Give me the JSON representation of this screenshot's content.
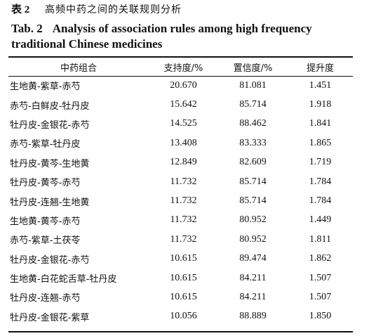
{
  "caption": {
    "number_cn": "表 2",
    "title_cn": "高频中药之间的关联规则分析",
    "number_en": "Tab. 2",
    "title_en": "Analysis of association rules among high frequency traditional Chinese medicines"
  },
  "table": {
    "headers": [
      "中药组合",
      "支持度/%",
      "置信度/%",
      "提升度"
    ],
    "rows": [
      [
        "生地黄-紫草-赤芍",
        "20.670",
        "81.081",
        "1.451"
      ],
      [
        "赤芍-白鲜皮-牡丹皮",
        "15.642",
        "85.714",
        "1.918"
      ],
      [
        "牡丹皮-金银花-赤芍",
        "14.525",
        "88.462",
        "1.841"
      ],
      [
        "赤芍-紫草-牡丹皮",
        "13.408",
        "83.333",
        "1.865"
      ],
      [
        "牡丹皮-黄芩-生地黄",
        "12.849",
        "82.609",
        "1.719"
      ],
      [
        "牡丹皮-黄芩-赤芍",
        "11.732",
        "85.714",
        "1.784"
      ],
      [
        "牡丹皮-连翘-生地黄",
        "11.732",
        "85.714",
        "1.784"
      ],
      [
        "生地黄-黄芩-赤芍",
        "11.732",
        "80.952",
        "1.449"
      ],
      [
        "赤芍-紫草-土茯苓",
        "11.732",
        "80.952",
        "1.811"
      ],
      [
        "牡丹皮-金银花-赤芍",
        "10.615",
        "89.474",
        "1.862"
      ],
      [
        "生地黄-白花蛇舌草-牡丹皮",
        "10.615",
        "84.211",
        "1.507"
      ],
      [
        "牡丹皮-连翘-赤芍",
        "10.615",
        "84.211",
        "1.507"
      ],
      [
        "牡丹皮-金银花-紫草",
        "10.056",
        "88.889",
        "1.850"
      ]
    ]
  }
}
